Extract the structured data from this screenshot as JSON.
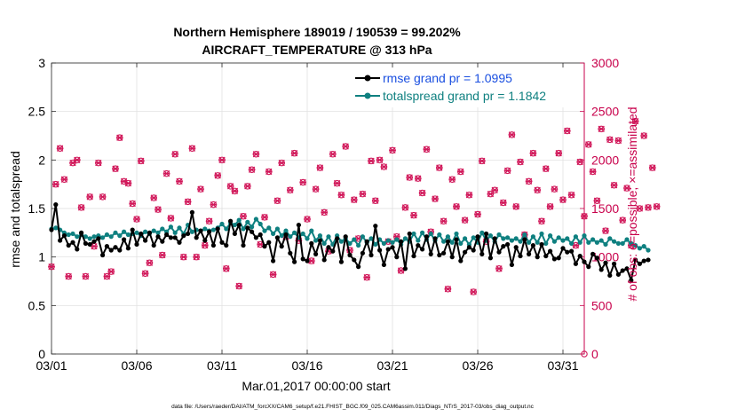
{
  "colors": {
    "rmse": "#000000",
    "spread": "#0f8080",
    "obs": "#d1185a",
    "legend_rmse_text": "#1a4fe0",
    "legend_spread_text": "#0f8080",
    "right_axis": "#c8004b",
    "grid": "#dddddd"
  },
  "footer": "data file: /Users/raeder/DAI/ATM_forcXX/CAM6_setup/f.e21.FHIST_BGC.f09_025.CAM6assim.011/Diags_NTrS_2017-03/obs_diag_output.nc",
  "chart_data": {
    "type": "line",
    "title": "Northern Hemisphere 189019 / 190539 = 99.202%",
    "subtitle": "AIRCRAFT_TEMPERATURE @ 313 hPa",
    "xlabel": "Mar.01,2017 00:00:00 start",
    "ylabel": "rmse and totalspread",
    "y2label": "# of obs: o=possible; ×=assimilated",
    "xlim": [
      0,
      31.25
    ],
    "ylim": [
      0,
      3
    ],
    "y2lim": [
      0,
      3000
    ],
    "x_ticks": [
      0,
      5,
      10,
      15,
      20,
      25,
      30
    ],
    "x_tick_labels": [
      "03/01",
      "03/06",
      "03/11",
      "03/16",
      "03/21",
      "03/26",
      "03/31"
    ],
    "y_ticks": [
      0,
      0.5,
      1,
      1.5,
      2,
      2.5,
      3
    ],
    "y_tick_labels": [
      "0",
      "0.5",
      "1",
      "1.5",
      "2",
      "2.5",
      "3"
    ],
    "y2_ticks": [
      0,
      500,
      1000,
      1500,
      2000,
      2500,
      3000
    ],
    "y2_tick_labels": [
      "0",
      "500",
      "1000",
      "1500",
      "2000",
      "2500",
      "3000"
    ],
    "grid": true,
    "legend": "top-right",
    "step_days": 0.25,
    "series": [
      {
        "name": "rmse grand pr = 1.0995",
        "axis": "left",
        "marker": "dot-line",
        "values": [
          1.28,
          1.54,
          1.17,
          1.22,
          1.12,
          1.15,
          1.08,
          1.25,
          1.14,
          1.13,
          1.16,
          1.19,
          1.02,
          1.11,
          1.07,
          1.1,
          1.07,
          1.18,
          1.09,
          1.28,
          1.13,
          1.24,
          1.17,
          1.25,
          1.12,
          1.21,
          1.16,
          1.23,
          1.2,
          1.2,
          1.15,
          1.22,
          1.24,
          1.46,
          1.2,
          1.27,
          1.17,
          1.26,
          1.12,
          1.29,
          1.15,
          1.12,
          1.37,
          1.24,
          1.33,
          1.12,
          1.3,
          1.26,
          1.2,
          1.23,
          1.11,
          1.15,
          0.96,
          1.2,
          1.11,
          1.23,
          1.04,
          0.95,
          1.33,
          0.98,
          0.96,
          1.14,
          1.03,
          1.17,
          0.97,
          1.1,
          1.06,
          1.19,
          0.95,
          1.21,
          1.02,
          0.97,
          0.9,
          1.04,
          1.16,
          1.02,
          1.32,
          1.07,
          0.92,
          1.08,
          1.1,
          1.0,
          1.16,
          0.88,
          1.24,
          1.01,
          1.12,
          1.08,
          1.21,
          1.03,
          1.19,
          1.02,
          1.04,
          1.16,
          1.0,
          1.18,
          0.96,
          1.05,
          1.1,
          1.07,
          1.21,
          1.03,
          1.24,
          0.99,
          1.19,
          1.05,
          1.11,
          1.13,
          0.92,
          1.1,
          1.01,
          1.18,
          1.03,
          1.12,
          1.0,
          1.13,
          1.01,
          1.06,
          0.98,
          0.99,
          1.09,
          1.05,
          1.06,
          0.93,
          1.01,
          0.95,
          0.9,
          1.03,
          0.99,
          0.87,
          0.94,
          0.81,
          0.93,
          0.82,
          0.86,
          0.88,
          0.76,
          0.97,
          0.93,
          0.96,
          0.97
        ],
        "xlim_shift": 0
      },
      {
        "name": "totalspread grand pr = 1.1842",
        "axis": "left",
        "marker": "dot-line",
        "values": [
          1.29,
          1.3,
          1.28,
          1.25,
          1.23,
          1.24,
          1.21,
          1.23,
          1.21,
          1.19,
          1.21,
          1.22,
          1.2,
          1.23,
          1.21,
          1.25,
          1.22,
          1.26,
          1.23,
          1.24,
          1.25,
          1.22,
          1.26,
          1.24,
          1.27,
          1.25,
          1.29,
          1.26,
          1.31,
          1.25,
          1.3,
          1.24,
          1.33,
          1.26,
          1.28,
          1.27,
          1.29,
          1.27,
          1.28,
          1.3,
          1.34,
          1.29,
          1.35,
          1.33,
          1.38,
          1.29,
          1.36,
          1.31,
          1.39,
          1.34,
          1.27,
          1.3,
          1.24,
          1.29,
          1.22,
          1.27,
          1.21,
          1.25,
          1.2,
          1.24,
          1.19,
          1.27,
          1.17,
          1.22,
          1.14,
          1.21,
          1.13,
          1.22,
          1.16,
          1.19,
          1.14,
          1.18,
          1.12,
          1.21,
          1.15,
          1.19,
          1.13,
          1.18,
          1.14,
          1.17,
          1.15,
          1.18,
          1.13,
          1.19,
          1.16,
          1.24,
          1.17,
          1.25,
          1.18,
          1.24,
          1.17,
          1.23,
          1.16,
          1.21,
          1.15,
          1.24,
          1.14,
          1.19,
          1.13,
          1.2,
          1.15,
          1.25,
          1.17,
          1.22,
          1.16,
          1.23,
          1.19,
          1.2,
          1.17,
          1.19,
          1.16,
          1.23,
          1.15,
          1.21,
          1.15,
          1.24,
          1.14,
          1.22,
          1.16,
          1.2,
          1.17,
          1.19,
          1.14,
          1.21,
          1.15,
          1.22,
          1.15,
          1.18,
          1.15,
          1.17,
          1.13,
          1.19,
          1.16,
          1.14,
          1.14,
          1.18,
          1.14,
          1.12,
          1.09,
          1.11,
          1.07
        ],
        "xlim_shift": 0
      },
      {
        "name": "# of obs possible",
        "axis": "right",
        "marker": "circle",
        "values": [
          900,
          1750,
          2120,
          1800,
          800,
          1970,
          2000,
          1510,
          800,
          1620,
          1110,
          1970,
          1620,
          800,
          850,
          1910,
          2230,
          1780,
          1760,
          1550,
          1390,
          1990,
          830,
          940,
          1610,
          1490,
          1020,
          1860,
          1400,
          2060,
          1780,
          1000,
          1570,
          2120,
          1000,
          1700,
          1120,
          1370,
          1540,
          1840,
          2000,
          880,
          1730,
          1680,
          700,
          1420,
          1730,
          1900,
          2060,
          1130,
          1410,
          1880,
          820,
          1580,
          1970,
          1210,
          1690,
          2070,
          1170,
          1770,
          1390,
          960,
          1700,
          1920,
          1460,
          1060,
          2060,
          1760,
          1640,
          2140,
          1070,
          1590,
          1190,
          1650,
          790,
          1990,
          1580,
          2000,
          1930,
          1160,
          2100,
          1210,
          860,
          1510,
          1820,
          1430,
          1810,
          1660,
          2110,
          1260,
          1600,
          1920,
          1370,
          670,
          1800,
          1520,
          1880,
          1380,
          1640,
          640,
          1440,
          1990,
          1160,
          1650,
          1690,
          880,
          1560,
          1890,
          2260,
          1520,
          1980,
          1230,
          1780,
          2070,
          1690,
          1370,
          1910,
          1520,
          1700,
          2070,
          1590,
          2300,
          1640,
          1120,
          1980,
          1420,
          2160,
          1880,
          1580,
          2320,
          1270,
          2210,
          1740,
          2200,
          1380,
          1710,
          1120,
          2400,
          1500,
          2250,
          1510,
          1920,
          1520
        ],
        "xlim_shift": 0
      }
    ]
  },
  "legend_items": [
    {
      "label": "rmse grand pr = 1.0995"
    },
    {
      "label": "totalspread grand pr = 1.1842"
    }
  ]
}
